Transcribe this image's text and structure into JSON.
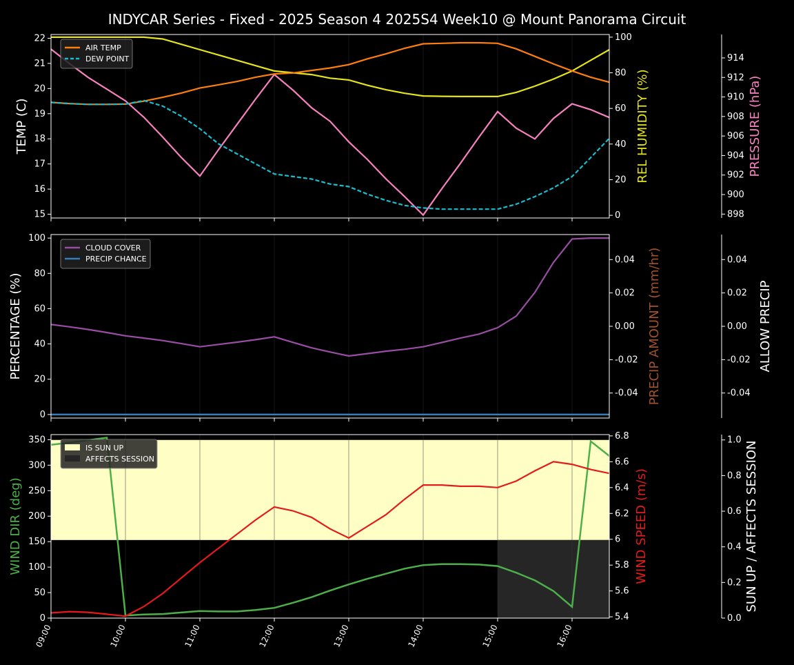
{
  "title": "INDYCAR Series - Fixed - 2025 Season 4 2025S4 Week10 @ Mount Panorama Circuit",
  "colors": {
    "air_temp": "#ff7f0e",
    "dew_point": "#17becf",
    "humidity": "#e5e51a",
    "pressure": "#f781bf",
    "cloud": "#984ea3",
    "precip_chance": "#377eb8",
    "precip_amount": "#a0522d",
    "wind_dir": "#4daf4a",
    "wind_speed": "#e41a1c",
    "sun_up": "#ffffc5",
    "affects_session": "#262626"
  },
  "chart_data": [
    {
      "type": "line",
      "x": [
        "09:00",
        "09:15",
        "09:30",
        "09:45",
        "10:00",
        "10:15",
        "10:30",
        "10:45",
        "11:00",
        "11:15",
        "11:30",
        "11:45",
        "12:00",
        "12:15",
        "12:30",
        "12:45",
        "13:00",
        "13:15",
        "13:30",
        "13:45",
        "14:00",
        "14:15",
        "14:30",
        "14:45",
        "15:00",
        "15:15",
        "15:30",
        "15:45",
        "16:00",
        "16:15",
        "16:30"
      ],
      "x_ticks": [
        "09:00",
        "10:00",
        "11:00",
        "12:00",
        "13:00",
        "14:00",
        "15:00",
        "16:00"
      ],
      "ylabel": "TEMP (C)",
      "ylim": [
        14.85,
        22.15
      ],
      "yticks": [
        15,
        16,
        17,
        18,
        19,
        20,
        21,
        22
      ],
      "ylabel_right": "REL HUMIDITY (%)",
      "ylim_right": [
        -1.5,
        101.5
      ],
      "yticks_right": [
        0,
        20,
        40,
        60,
        80,
        100
      ],
      "ylabel_right2": "PRESSURE (hPa)",
      "ylim_right2": [
        897.6,
        916.4
      ],
      "yticks_right2": [
        898,
        900,
        902,
        904,
        906,
        908,
        910,
        912,
        914
      ],
      "legend": "top-left",
      "grid": "vertical",
      "series": [
        {
          "name": "AIR TEMP",
          "axis": "left",
          "values": [
            19.45,
            19.4,
            19.37,
            19.37,
            19.38,
            19.5,
            19.65,
            19.82,
            20.02,
            20.15,
            20.28,
            20.45,
            20.58,
            20.62,
            20.72,
            20.82,
            20.95,
            21.18,
            21.38,
            21.6,
            21.78,
            21.8,
            21.82,
            21.82,
            21.8,
            21.58,
            21.28,
            20.98,
            20.7,
            20.45,
            20.25
          ]
        },
        {
          "name": "DEW POINT",
          "axis": "left",
          "values": [
            19.45,
            19.4,
            19.37,
            19.37,
            19.38,
            19.52,
            19.3,
            18.9,
            18.4,
            17.8,
            17.4,
            17.0,
            16.6,
            16.5,
            16.4,
            16.2,
            16.1,
            15.8,
            15.55,
            15.35,
            15.25,
            15.2,
            15.2,
            15.2,
            15.2,
            15.4,
            15.7,
            16.05,
            16.5,
            17.25,
            18.02
          ]
        },
        {
          "axis": "right",
          "values": [
            100,
            100,
            100,
            100,
            100,
            100,
            99,
            96,
            93,
            90,
            87,
            84,
            81,
            80,
            79,
            77,
            76,
            73,
            70.5,
            68.5,
            67,
            66.8,
            66.7,
            66.7,
            66.7,
            69,
            72.5,
            76.5,
            81,
            87,
            93
          ]
        },
        {
          "axis": "right2",
          "values": [
            914.9,
            913.4,
            912,
            910.8,
            909.6,
            907.9,
            905.9,
            903.8,
            901.9,
            904.6,
            907.2,
            909.8,
            912.3,
            910.7,
            908.9,
            907.5,
            905.4,
            903.6,
            901.6,
            899.8,
            897.9,
            900.6,
            903.2,
            905.9,
            908.5,
            906.8,
            905.7,
            907.8,
            909.3,
            908.7,
            907.9
          ]
        }
      ]
    },
    {
      "type": "line",
      "x": [
        "09:00",
        "09:15",
        "09:30",
        "09:45",
        "10:00",
        "10:15",
        "10:30",
        "10:45",
        "11:00",
        "11:15",
        "11:30",
        "11:45",
        "12:00",
        "12:15",
        "12:30",
        "12:45",
        "13:00",
        "13:15",
        "13:30",
        "13:45",
        "14:00",
        "14:15",
        "14:30",
        "14:45",
        "15:00",
        "15:15",
        "15:30",
        "15:45",
        "16:00",
        "16:15",
        "16:30"
      ],
      "ylabel": "PERCENTAGE (%)",
      "ylim": [
        -2,
        102
      ],
      "yticks": [
        0,
        20,
        40,
        60,
        80,
        100
      ],
      "ylabel_right": "PRECIP AMOUNT (mm/hr)",
      "ylim_right": [
        -0.055,
        0.055
      ],
      "yticks_right": [
        -0.04,
        -0.02,
        0.0,
        0.02,
        0.04
      ],
      "ylabel_right2": "ALLOW PRECIP",
      "ylim_right2": [
        -0.055,
        0.055
      ],
      "yticks_right2": [
        -0.04,
        -0.02,
        0.0,
        0.02,
        0.04
      ],
      "legend": "top-left",
      "grid": "vertical",
      "series": [
        {
          "name": "CLOUD COVER",
          "values": [
            51,
            49.7,
            48.2,
            46.5,
            44.6,
            43.3,
            41.9,
            40.2,
            38.4,
            39.7,
            41,
            42.4,
            44,
            40.9,
            37.8,
            35.4,
            33.2,
            34.5,
            35.9,
            37,
            38.4,
            40.8,
            43.3,
            45.6,
            49.2,
            55.8,
            69.2,
            86.2,
            99.5,
            100,
            100
          ]
        },
        {
          "name": "PRECIP CHANCE",
          "values": [
            0,
            0,
            0,
            0,
            0,
            0,
            0,
            0,
            0,
            0,
            0,
            0,
            0,
            0,
            0,
            0,
            0,
            0,
            0,
            0,
            0,
            0,
            0,
            0,
            0,
            0,
            0,
            0,
            0,
            0,
            0
          ]
        }
      ]
    },
    {
      "type": "line",
      "x": [
        "09:00",
        "09:15",
        "09:30",
        "09:45",
        "10:00",
        "10:15",
        "10:30",
        "10:45",
        "11:00",
        "11:15",
        "11:30",
        "11:45",
        "12:00",
        "12:15",
        "12:30",
        "12:45",
        "13:00",
        "13:15",
        "13:30",
        "13:45",
        "14:00",
        "14:15",
        "14:30",
        "14:45",
        "15:00",
        "15:15",
        "15:30",
        "15:45",
        "16:00",
        "16:15",
        "16:30"
      ],
      "ylabel": "WIND DIR (deg)",
      "ylim": [
        0,
        360
      ],
      "yticks": [
        0,
        50,
        100,
        150,
        200,
        250,
        300,
        350
      ],
      "ylabel_right": "WIND SPEED (m/s)",
      "ylim_right": [
        5.39,
        6.81
      ],
      "yticks_right": [
        5.4,
        5.6,
        5.8,
        6.0,
        6.2,
        6.4,
        6.6,
        6.8
      ],
      "ylabel_right2": "SUN UP / AFFECTS SESSION",
      "ylim_right2": [
        0,
        1.03
      ],
      "yticks_right2": [
        "0.0",
        "0.2",
        "0.4",
        "0.6",
        "0.8",
        "1.0"
      ],
      "legend": "top-left",
      "grid": "vertical",
      "sun_up": {
        "value": 1,
        "x_range": [
          "09:00",
          "16:30"
        ]
      },
      "affects_session": {
        "value": 1,
        "x_range": [
          "15:00",
          "16:30"
        ]
      },
      "series": [
        {
          "name": "IS SUN UP",
          "kind": "band"
        },
        {
          "name": "AFFECTS SESSION",
          "kind": "band"
        },
        {
          "axis": "left",
          "values": [
            340,
            344,
            349,
            354,
            5,
            7,
            8,
            11,
            14,
            13,
            13,
            16,
            20,
            30,
            41,
            54,
            66,
            77,
            87,
            97,
            104,
            106,
            106,
            105,
            102,
            89,
            74,
            53,
            22,
            347,
            318
          ]
        },
        {
          "axis": "right",
          "values": [
            5.43,
            5.44,
            5.435,
            5.42,
            5.405,
            5.48,
            5.58,
            5.7,
            5.82,
            5.93,
            6.04,
            6.15,
            6.25,
            6.22,
            6.17,
            6.08,
            6.01,
            6.1,
            6.19,
            6.31,
            6.42,
            6.42,
            6.41,
            6.41,
            6.4,
            6.45,
            6.53,
            6.6,
            6.58,
            6.54,
            6.51
          ]
        }
      ]
    }
  ]
}
